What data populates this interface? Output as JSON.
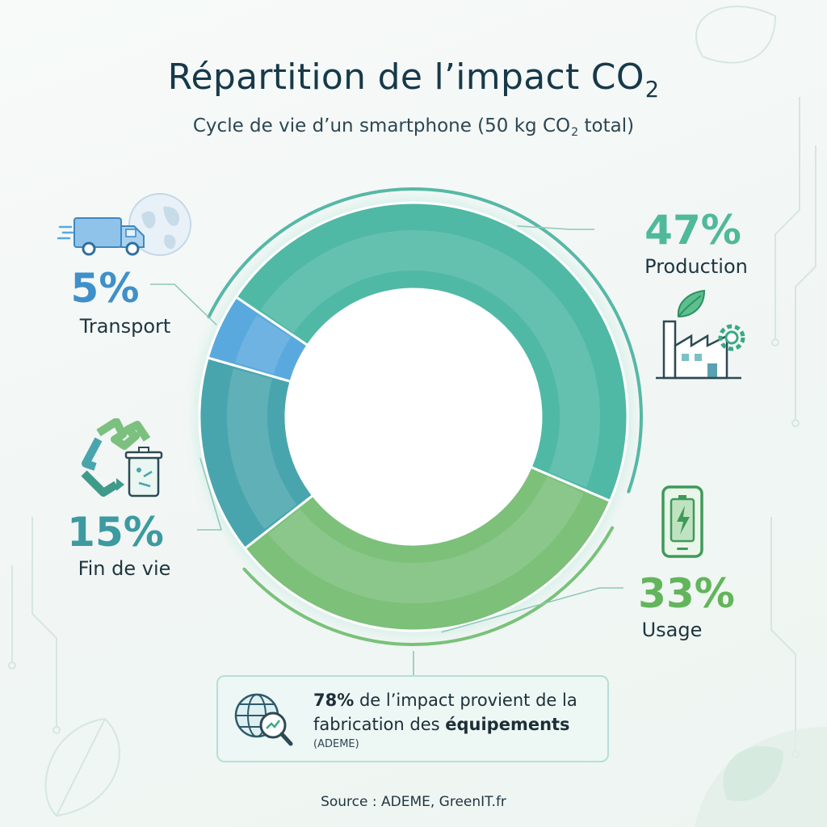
{
  "header": {
    "title": "Répartition de l’impact CO",
    "title_sub": "2",
    "subtitle_before": "Cycle de vie d’un smartphone (50 kg CO",
    "subtitle_sub": "2",
    "subtitle_after": " total)"
  },
  "chart_data": {
    "type": "pie",
    "variant": "donut",
    "unit": "%",
    "total_label": "50 kg CO2 total",
    "slices": [
      {
        "label": "Production",
        "value": 47,
        "value_label": "47%",
        "color": "#4fb9a5",
        "icon": "factory-icon"
      },
      {
        "label": "Usage",
        "value": 33,
        "value_label": "33%",
        "color": "#7cc07a",
        "icon": "smartphone-battery-icon"
      },
      {
        "label": "Fin de vie",
        "value": 15,
        "value_label": "15%",
        "color": "#49a5ad",
        "icon": "recycle-icon"
      },
      {
        "label": "Transport",
        "value": 5,
        "value_label": "5%",
        "color": "#5aa9de",
        "icon": "truck-globe-icon"
      }
    ]
  },
  "callout": {
    "bold_lead": "78%",
    "text_1": " de l’impact provient de la fabrication des ",
    "bold_tail": "équipements",
    "source": "(ADEME)",
    "icon": "globe-search-icon"
  },
  "footer": {
    "source": "Source : ADEME, GreenIT.fr"
  }
}
